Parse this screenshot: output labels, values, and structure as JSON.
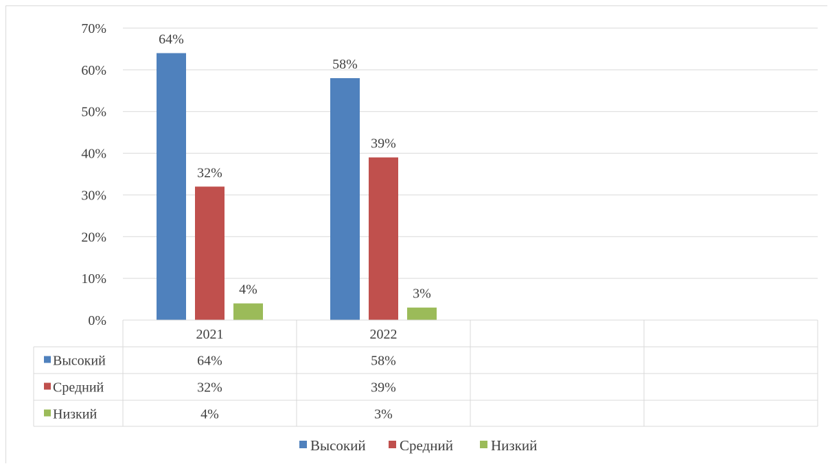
{
  "chart_data": {
    "type": "bar",
    "categories": [
      "2021",
      "2022",
      "",
      ""
    ],
    "series": [
      {
        "name": "Высокий",
        "values": [
          64,
          58,
          null,
          null
        ],
        "labels": [
          "64%",
          "58%",
          "",
          ""
        ],
        "color": "#4f81bd"
      },
      {
        "name": "Средний",
        "values": [
          32,
          39,
          null,
          null
        ],
        "labels": [
          "32%",
          "39%",
          "",
          ""
        ],
        "color": "#c0504d"
      },
      {
        "name": "Низкий",
        "values": [
          4,
          3,
          null,
          null
        ],
        "labels": [
          "4%",
          "3%",
          "",
          ""
        ],
        "color": "#9bbb59"
      }
    ],
    "ylim": [
      0,
      70
    ],
    "yticks": [
      0,
      10,
      20,
      30,
      40,
      50,
      60,
      70
    ],
    "ytick_labels": [
      "0%",
      "10%",
      "20%",
      "30%",
      "40%",
      "50%",
      "60%",
      "70%"
    ],
    "grid": true,
    "data_table": true,
    "legend_position": "bottom",
    "title": "",
    "xlabel": "",
    "ylabel": ""
  }
}
